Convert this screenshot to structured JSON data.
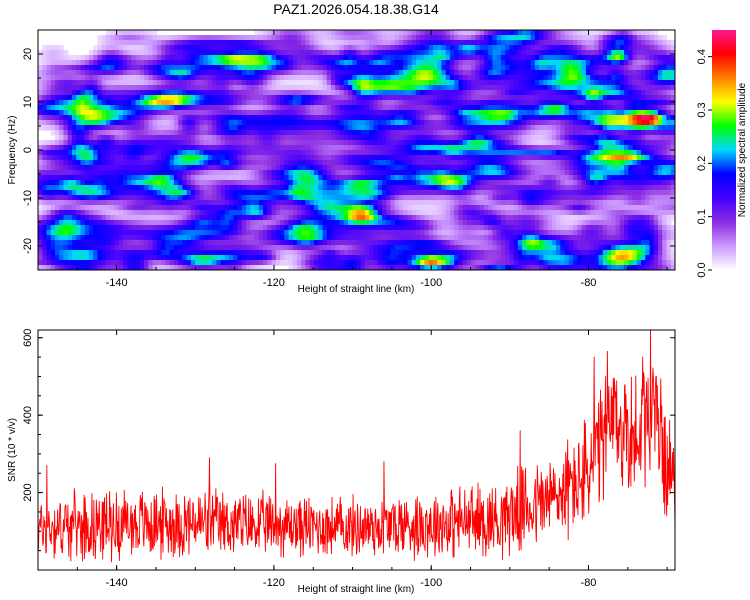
{
  "chart_data": [
    {
      "type": "heatmap",
      "title": "PAZ1.2026.054.18.38.G14",
      "xlabel": "Height of straight line (km)",
      "ylabel": "Frequency (Hz)",
      "xlim": [
        -150,
        -69
      ],
      "ylim": [
        -25,
        25
      ],
      "xticks": [
        "-140",
        "-120",
        "-100",
        "-80"
      ],
      "yticks": [
        "20",
        "10",
        "0",
        "-10",
        "-20"
      ],
      "xtick_values": [
        -140,
        -120,
        -100,
        -80
      ],
      "ytick_values": [
        20,
        10,
        0,
        -10,
        -20
      ],
      "colorbar": {
        "label": "Normalized spectral amplitude",
        "range": [
          0,
          0.45
        ],
        "ticks": [
          "0.0",
          "0.1",
          "0.2",
          "0.3",
          "0.4"
        ],
        "tick_values": [
          0,
          0.1,
          0.2,
          0.3,
          0.4
        ],
        "colormap": [
          "#ffffff",
          "#cc99ff",
          "#8a2be2",
          "#4400ff",
          "#0000ff",
          "#00d8ff",
          "#00ff00",
          "#ffff00",
          "#ff8000",
          "#ff0000",
          "#ff1493"
        ]
      },
      "hotspots": [
        {
          "x": -146.5,
          "y": 14,
          "value": 0.12
        },
        {
          "x": -130,
          "y": 20,
          "value": 0.12
        },
        {
          "x": -125.5,
          "y": -20,
          "value": 0.11
        },
        {
          "x": -112,
          "y": -17,
          "value": 0.11
        },
        {
          "x": -100,
          "y": -2,
          "value": 0.12
        },
        {
          "x": -98.5,
          "y": 10.5,
          "value": 0.16
        },
        {
          "x": -95,
          "y": 21,
          "value": 0.11
        },
        {
          "x": -89,
          "y": 8.5,
          "value": 0.2
        },
        {
          "x": -84.5,
          "y": 9,
          "value": 0.28
        },
        {
          "x": -80.5,
          "y": 8,
          "value": 0.22
        },
        {
          "x": -77,
          "y": 6.5,
          "value": 0.3
        },
        {
          "x": -73,
          "y": 7,
          "value": 0.45
        },
        {
          "x": -69.5,
          "y": 6,
          "value": 0.22
        }
      ]
    },
    {
      "type": "line",
      "title": "",
      "xlabel": "Height of straight line (km)",
      "ylabel": "SNR (10 * v/v)",
      "xlim": [
        -150,
        -69
      ],
      "ylim": [
        0,
        620
      ],
      "xticks": [
        "-140",
        "-120",
        "-100",
        "-80"
      ],
      "yticks": [
        "600",
        "400",
        "200"
      ],
      "xtick_values": [
        -140,
        -120,
        -100,
        -80
      ],
      "ytick_values": [
        600,
        400,
        200
      ],
      "series": [
        {
          "name": "SNR",
          "color": "#ff0000",
          "x_start": -150,
          "x_end": -69,
          "envelope": [
            {
              "x": -150,
              "mean": 110,
              "range": 80
            },
            {
              "x": -140,
              "mean": 120,
              "range": 90
            },
            {
              "x": -130,
              "mean": 120,
              "range": 90
            },
            {
              "x": -120,
              "mean": 115,
              "range": 80
            },
            {
              "x": -110,
              "mean": 110,
              "range": 80
            },
            {
              "x": -100,
              "mean": 120,
              "range": 90
            },
            {
              "x": -92,
              "mean": 130,
              "range": 100
            },
            {
              "x": -88,
              "mean": 160,
              "range": 110
            },
            {
              "x": -84,
              "mean": 190,
              "range": 120
            },
            {
              "x": -80,
              "mean": 250,
              "range": 150
            },
            {
              "x": -77,
              "mean": 380,
              "range": 170
            },
            {
              "x": -74,
              "mean": 340,
              "range": 170
            },
            {
              "x": -72,
              "mean": 420,
              "range": 200
            },
            {
              "x": -70,
              "mean": 280,
              "range": 140
            },
            {
              "x": -69,
              "mean": 220,
              "range": 100
            }
          ],
          "peaks": [
            {
              "x": -148.9,
              "y": 270
            },
            {
              "x": -128.2,
              "y": 290
            },
            {
              "x": -119.8,
              "y": 275
            },
            {
              "x": -106,
              "y": 280
            },
            {
              "x": -88.7,
              "y": 360
            },
            {
              "x": -79.3,
              "y": 550
            },
            {
              "x": -77.6,
              "y": 565
            },
            {
              "x": -73.1,
              "y": 550
            },
            {
              "x": -72.1,
              "y": 625
            },
            {
              "x": -71.4,
              "y": 500
            }
          ]
        }
      ]
    }
  ]
}
